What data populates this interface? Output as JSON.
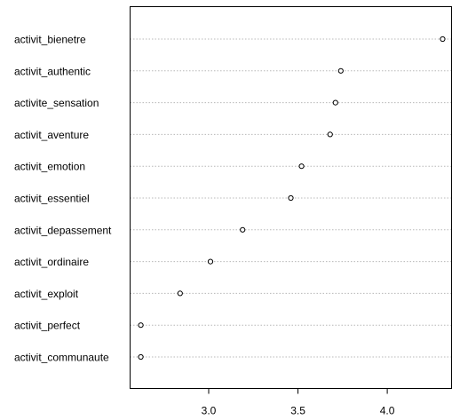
{
  "chart_data": {
    "type": "scatter",
    "title": "",
    "xlabel": "",
    "ylabel": "",
    "xlim": [
      2.56,
      4.36
    ],
    "xticks": [
      3.0,
      3.5,
      4.0
    ],
    "xtick_labels": [
      "3.0",
      "3.5",
      "4.0"
    ],
    "grid": "horizontal-dotted",
    "legend": "none",
    "categories": [
      "activit_bienetre",
      "activit_authentic",
      "activite_sensation",
      "activit_aventure",
      "activit_emotion",
      "activit_essentiel",
      "activit_depassement",
      "activit_ordinaire",
      "activit_exploit",
      "activit_perfect",
      "activit_communaute"
    ],
    "values": [
      4.31,
      3.74,
      3.71,
      3.68,
      3.52,
      3.46,
      3.19,
      3.01,
      2.84,
      2.62,
      2.62
    ],
    "colors": {
      "points": "#000000",
      "grid": "#b8b8b8",
      "frame": "#000000"
    }
  }
}
